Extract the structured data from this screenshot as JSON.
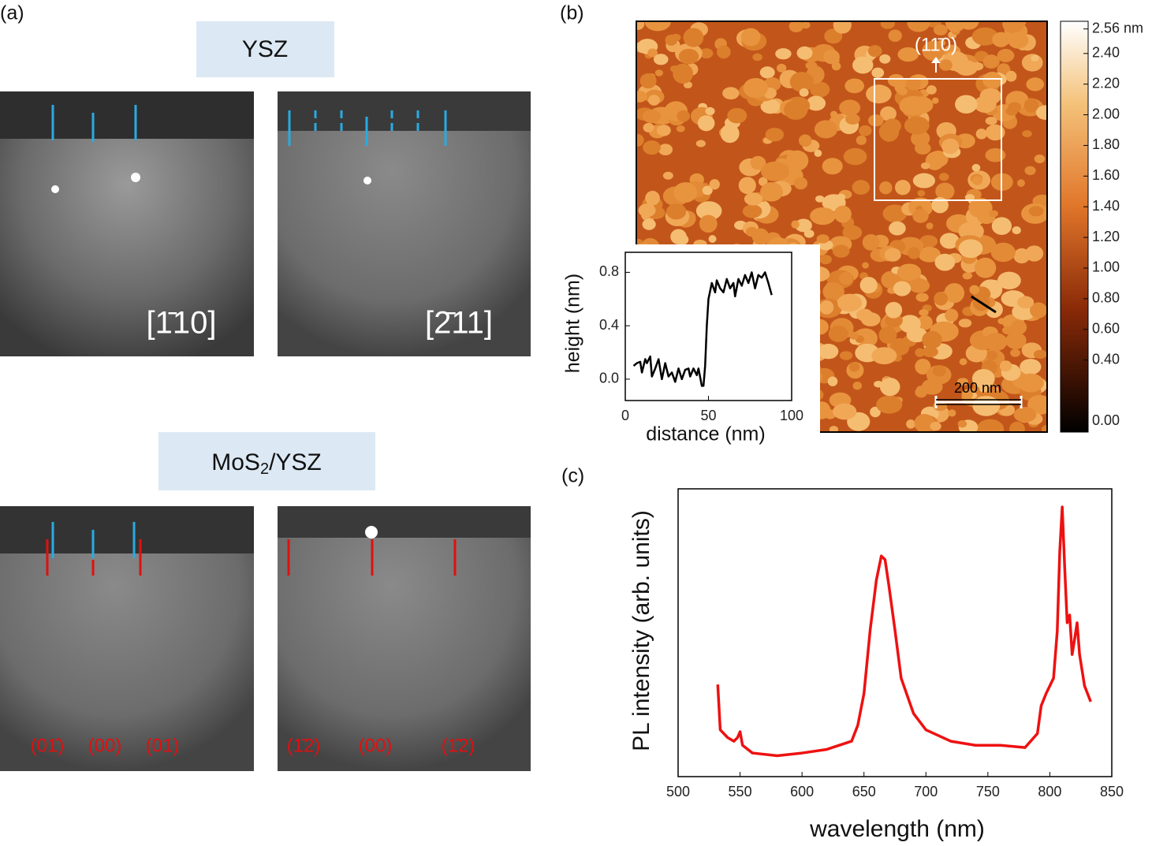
{
  "panels": {
    "a": "(a)",
    "b": "(b)",
    "c": "(c)"
  },
  "rheed": {
    "top_title": "YSZ",
    "bottom_title": {
      "main": "MoS",
      "sub": "2",
      "rest": "/YSZ"
    },
    "azimuths": [
      "[1̄10]",
      "[2̄11]"
    ],
    "streaks_left": [
      "(01̄)",
      "(00)",
      "(01)"
    ],
    "streaks_right": [
      "(1̄2)",
      "(00)",
      "(1̄2)"
    ]
  },
  "afm": {
    "direction": "(11̄0)",
    "scale_bar": "200 nm",
    "colorbar": {
      "lim": [
        -0.07,
        2.61
      ],
      "ticks": [
        {
          "value": 2.56,
          "label": "2.56 nm"
        },
        {
          "value": 2.4,
          "label": "2.40"
        },
        {
          "value": 2.2,
          "label": "2.20"
        },
        {
          "value": 2,
          "label": "2.00"
        },
        {
          "value": 1.8,
          "label": "1.80"
        },
        {
          "value": 1.6,
          "label": "1.60"
        },
        {
          "value": 1.4,
          "label": "1.40"
        },
        {
          "value": 1.2,
          "label": "1.20"
        },
        {
          "value": 1,
          "label": "1.00"
        },
        {
          "value": 0.8,
          "label": "0.80"
        },
        {
          "value": 0.6,
          "label": "0.60"
        },
        {
          "value": 0.4,
          "label": "0.40"
        },
        {
          "value": 0,
          "label": "0.00"
        }
      ]
    }
  },
  "chart_data": [
    {
      "type": "line",
      "x_label": "distance (nm)",
      "y_label": "height (nm)",
      "color": "#000000",
      "x": [
        5,
        7,
        9,
        10,
        12,
        13,
        15,
        16,
        18,
        20,
        22,
        24,
        26,
        28,
        30,
        32,
        34,
        36,
        38,
        39,
        41,
        43,
        44,
        46,
        47,
        48,
        49,
        50,
        52,
        54,
        55,
        57,
        59,
        61,
        63,
        65,
        66,
        68,
        70,
        72,
        74,
        76,
        78,
        80,
        82,
        84,
        86,
        88
      ],
      "values": [
        0.1,
        0.12,
        0.13,
        0.05,
        0.15,
        0.12,
        0.17,
        0.02,
        0.08,
        0.15,
        0,
        0.12,
        0.02,
        0.05,
        -0.02,
        0.08,
        0,
        0.07,
        0.08,
        0.02,
        0.08,
        0.03,
        0.08,
        -0.05,
        -0.05,
        0.1,
        0.4,
        0.6,
        0.72,
        0.65,
        0.74,
        0.68,
        0.65,
        0.75,
        0.68,
        0.72,
        0.62,
        0.75,
        0.7,
        0.78,
        0.72,
        0.8,
        0.68,
        0.78,
        0.76,
        0.8,
        0.72,
        0.63
      ],
      "xlim": [
        0,
        100
      ],
      "xticks": [
        0,
        50,
        100
      ],
      "ylim": [
        -0.16,
        0.95
      ],
      "yticks": [
        {
          "value": 0,
          "label": "0.0"
        },
        0.4,
        0.8
      ]
    },
    {
      "type": "line",
      "x_label": "wavelength (nm)",
      "y_label": "PL intensity (arb. units)",
      "color": "#ee1111",
      "x": [
        532,
        534,
        540,
        545,
        548,
        550,
        552,
        560,
        580,
        600,
        620,
        640,
        645,
        650,
        655,
        660,
        664,
        667,
        670,
        675,
        680,
        690,
        700,
        720,
        740,
        760,
        780,
        790,
        793,
        797,
        800,
        803,
        806,
        808,
        810,
        812,
        814,
        816,
        818,
        820,
        822,
        824,
        828,
        833
      ],
      "values": [
        1.6,
        0.6,
        0.43,
        0.35,
        0.43,
        0.56,
        0.26,
        0.09,
        0.03,
        0.09,
        0.17,
        0.35,
        0.7,
        1.4,
        2.8,
        3.9,
        4.43,
        4.35,
        3.8,
        2.8,
        1.74,
        0.96,
        0.6,
        0.35,
        0.26,
        0.26,
        0.21,
        0.52,
        1.13,
        1.4,
        1.57,
        1.74,
        2.78,
        4.52,
        5.51,
        4.17,
        2.96,
        3.13,
        2.26,
        2.6,
        2.96,
        2.26,
        1.57,
        1.22
      ],
      "xlim": [
        500,
        850
      ],
      "xticks": [
        500,
        550,
        600,
        650,
        700,
        750,
        800,
        850
      ],
      "ylim": [
        -0.43,
        5.91
      ]
    }
  ]
}
